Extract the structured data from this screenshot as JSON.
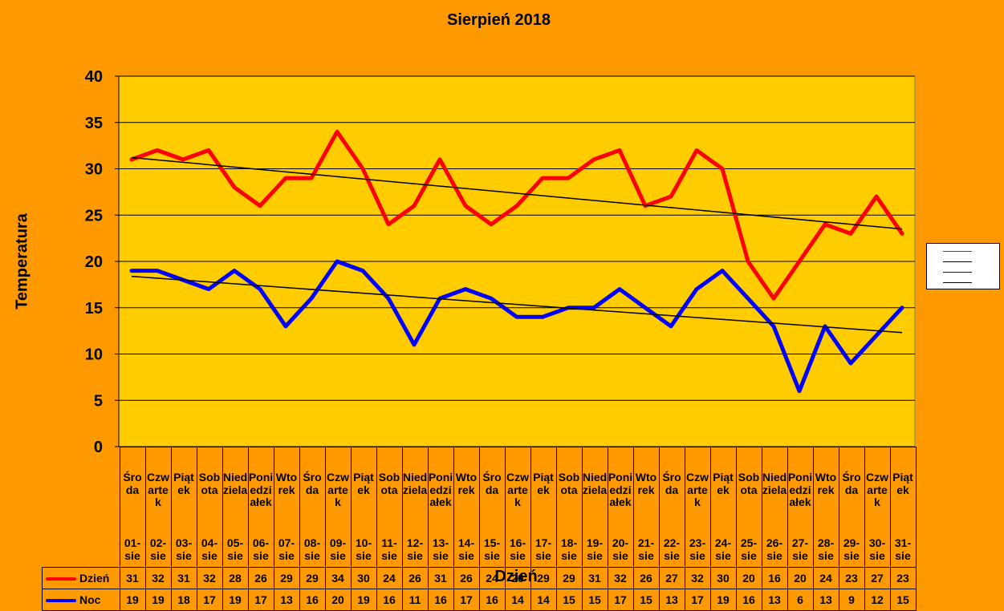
{
  "chart_data": {
    "type": "line",
    "title": "Sierpień 2018",
    "xlabel": "Dzień",
    "ylabel": "Temperatura",
    "ylim": [
      0,
      40
    ],
    "yticks": [
      "0",
      "5",
      "10",
      "15",
      "20",
      "25",
      "30",
      "35",
      "40"
    ],
    "grid": true,
    "legend_position": "right",
    "plot_background": "#FFCC00",
    "page_background": "#FF9900",
    "categories": [
      {
        "day": "Środa",
        "date": "01-sie"
      },
      {
        "day": "Czwartek",
        "date": "02-sie"
      },
      {
        "day": "Piątek",
        "date": "03-sie"
      },
      {
        "day": "Sobota",
        "date": "04-sie"
      },
      {
        "day": "Niedziela",
        "date": "05-sie"
      },
      {
        "day": "Poniedziałek",
        "date": "06-sie"
      },
      {
        "day": "Wtorek",
        "date": "07-sie"
      },
      {
        "day": "Środa",
        "date": "08-sie"
      },
      {
        "day": "Czwartek",
        "date": "09-sie"
      },
      {
        "day": "Piątek",
        "date": "10-sie"
      },
      {
        "day": "Sobota",
        "date": "11-sie"
      },
      {
        "day": "Niedziela",
        "date": "12-sie"
      },
      {
        "day": "Poniedziałek",
        "date": "13-sie"
      },
      {
        "day": "Wtorek",
        "date": "14-sie"
      },
      {
        "day": "Środa",
        "date": "15-sie"
      },
      {
        "day": "Czwartek",
        "date": "16-sie"
      },
      {
        "day": "Piątek",
        "date": "17-sie"
      },
      {
        "day": "Sobota",
        "date": "18-sie"
      },
      {
        "day": "Niedziela",
        "date": "19-sie"
      },
      {
        "day": "Poniedziałek",
        "date": "20-sie"
      },
      {
        "day": "Wtorek",
        "date": "21-sie"
      },
      {
        "day": "Środa",
        "date": "22-sie"
      },
      {
        "day": "Czwartek",
        "date": "23-sie"
      },
      {
        "day": "Piątek",
        "date": "24-sie"
      },
      {
        "day": "Sobota",
        "date": "25-sie"
      },
      {
        "day": "Niedziela",
        "date": "26-sie"
      },
      {
        "day": "Poniedziałek",
        "date": "27-sie"
      },
      {
        "day": "Wtorek",
        "date": "28-sie"
      },
      {
        "day": "Środa",
        "date": "29-sie"
      },
      {
        "day": "Czwartek",
        "date": "30-sie"
      },
      {
        "day": "Piątek",
        "date": "31-sie"
      }
    ],
    "series": [
      {
        "name": "Dzień",
        "color": "#FF0000",
        "values": [
          31,
          32,
          31,
          32,
          28,
          26,
          29,
          29,
          34,
          30,
          24,
          26,
          31,
          26,
          24,
          26,
          29,
          29,
          31,
          32,
          26,
          27,
          32,
          30,
          20,
          16,
          20,
          24,
          23,
          27,
          23
        ],
        "trendline": true
      },
      {
        "name": "Noc",
        "color": "#0000FF",
        "values": [
          19,
          19,
          18,
          17,
          19,
          17,
          13,
          16,
          20,
          19,
          16,
          11,
          16,
          17,
          16,
          14,
          14,
          15,
          15,
          17,
          15,
          13,
          17,
          19,
          16,
          13,
          6,
          13,
          9,
          12,
          15
        ],
        "trendline": true
      }
    ]
  }
}
